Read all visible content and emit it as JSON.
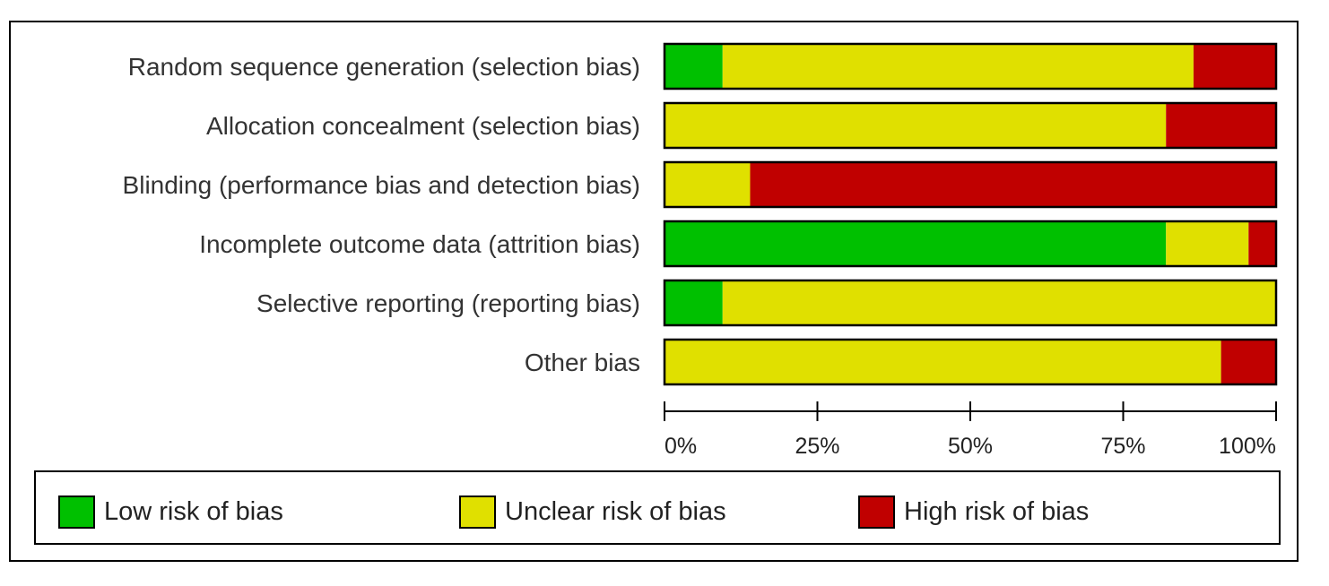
{
  "chart_data": {
    "type": "bar",
    "orientation": "horizontal",
    "stacked": true,
    "categories": [
      "Random sequence generation (selection bias)",
      "Allocation concealment (selection bias)",
      "Blinding (performance bias and detection bias)",
      "Incomplete outcome data (attrition bias)",
      "Selective reporting (reporting bias)",
      "Other bias"
    ],
    "series": [
      {
        "name": "Low risk of bias",
        "color": "#00c000",
        "values": [
          9.5,
          0,
          0,
          82,
          9.5,
          0
        ]
      },
      {
        "name": "Unclear risk of bias",
        "color": "#e0e000",
        "values": [
          77,
          82,
          14,
          13.5,
          90.5,
          91
        ]
      },
      {
        "name": "High risk of bias",
        "color": "#c00000",
        "values": [
          13.5,
          18,
          86,
          4.5,
          0,
          9
        ]
      }
    ],
    "xlim": [
      0,
      100
    ],
    "xticks": [
      "0%",
      "25%",
      "50%",
      "75%",
      "100%"
    ],
    "xtick_values": [
      0,
      25,
      50,
      75,
      100
    ],
    "legend_position": "bottom",
    "grid": false
  }
}
